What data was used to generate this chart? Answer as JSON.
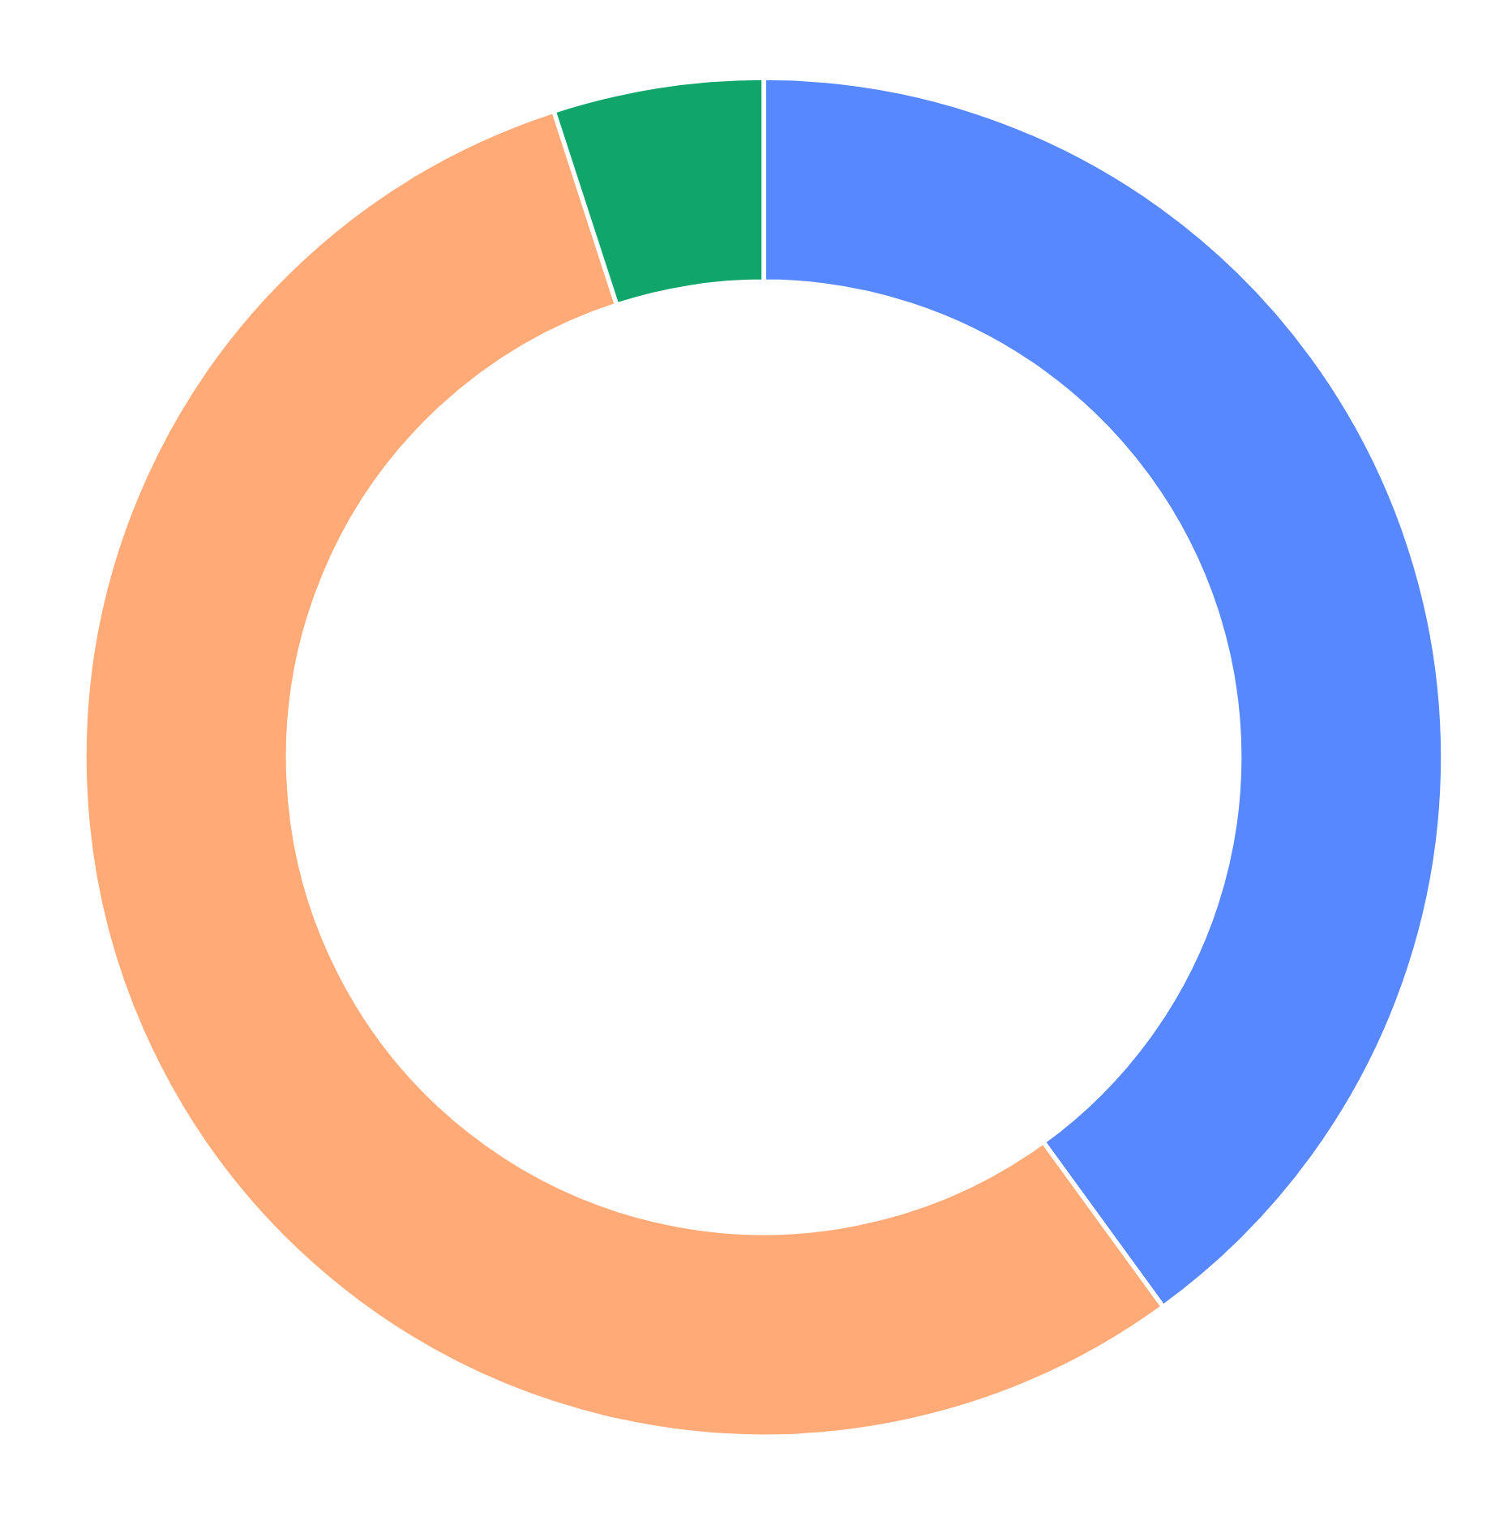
{
  "chart_data": {
    "type": "donut",
    "categories": [
      null,
      null,
      null
    ],
    "values": [
      40,
      55,
      5
    ],
    "colors": [
      "#5888ff",
      "#ffaa77",
      "#10a56a"
    ]
  }
}
